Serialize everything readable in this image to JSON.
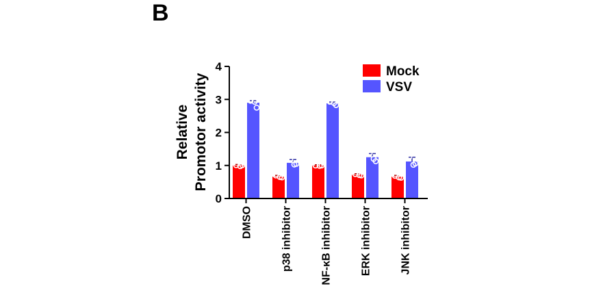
{
  "panel_label": "B",
  "chart_data": {
    "type": "bar",
    "ylabel_lines": [
      "Relative",
      "Promotor activity"
    ],
    "ylim": [
      0,
      4
    ],
    "yticks": [
      0,
      1,
      2,
      3,
      4
    ],
    "categories": [
      "DMSO",
      "p38 inhibitor",
      "NF-κB inhibitor",
      "ERK inhibitor",
      "JNK inhibitor"
    ],
    "legend_position": "top-right",
    "series": [
      {
        "name": "Mock",
        "color": "#ff0000",
        "values": [
          1.0,
          0.66,
          1.0,
          0.72,
          0.66
        ],
        "errors": [
          0.03,
          0.04,
          0.02,
          0.03,
          0.04
        ],
        "points": [
          [
            1.01,
            0.98,
            1.01
          ],
          [
            0.7,
            0.65,
            0.64
          ],
          [
            1.0,
            0.99,
            1.0
          ],
          [
            0.74,
            0.71,
            0.7
          ],
          [
            0.69,
            0.64,
            0.63
          ]
        ]
      },
      {
        "name": "VSV",
        "color": "#5555ff",
        "values": [
          2.9,
          1.08,
          2.88,
          1.25,
          1.12
        ],
        "errors": [
          0.06,
          0.1,
          0.04,
          0.11,
          0.13
        ],
        "points": [
          [
            2.96,
            2.93,
            2.75
          ],
          [
            1.17,
            1.03,
            1.05
          ],
          [
            2.93,
            2.89,
            2.83
          ],
          [
            1.37,
            1.2,
            1.13
          ],
          [
            1.26,
            1.02,
            1.06
          ]
        ]
      }
    ]
  }
}
